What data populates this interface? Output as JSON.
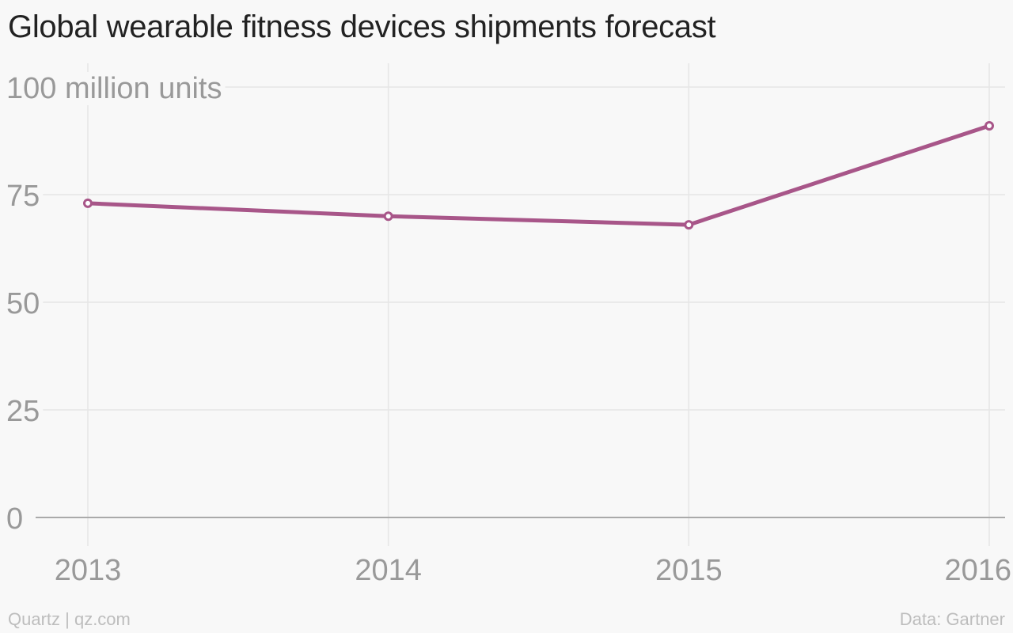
{
  "title": "Global wearable fitness devices shipments forecast",
  "footer": {
    "credit": "Quartz | qz.com",
    "source": "Data: Gartner"
  },
  "colors": {
    "series": "#a85689",
    "grid": "#e6e6e6",
    "axis_text": "#999999",
    "baseline": "#aaaaaa",
    "background": "#f8f8f8"
  },
  "chart_data": {
    "type": "line",
    "categories": [
      "2013",
      "2014",
      "2015",
      "2016"
    ],
    "series": [
      {
        "values": [
          73,
          70,
          68,
          91
        ]
      }
    ],
    "ylim": [
      0,
      100
    ],
    "yticks": [
      0,
      25,
      50,
      75,
      100
    ],
    "ytick_labels": [
      "0",
      "25",
      "50",
      "75",
      "100 million units"
    ],
    "grid": true,
    "legend": "none"
  }
}
